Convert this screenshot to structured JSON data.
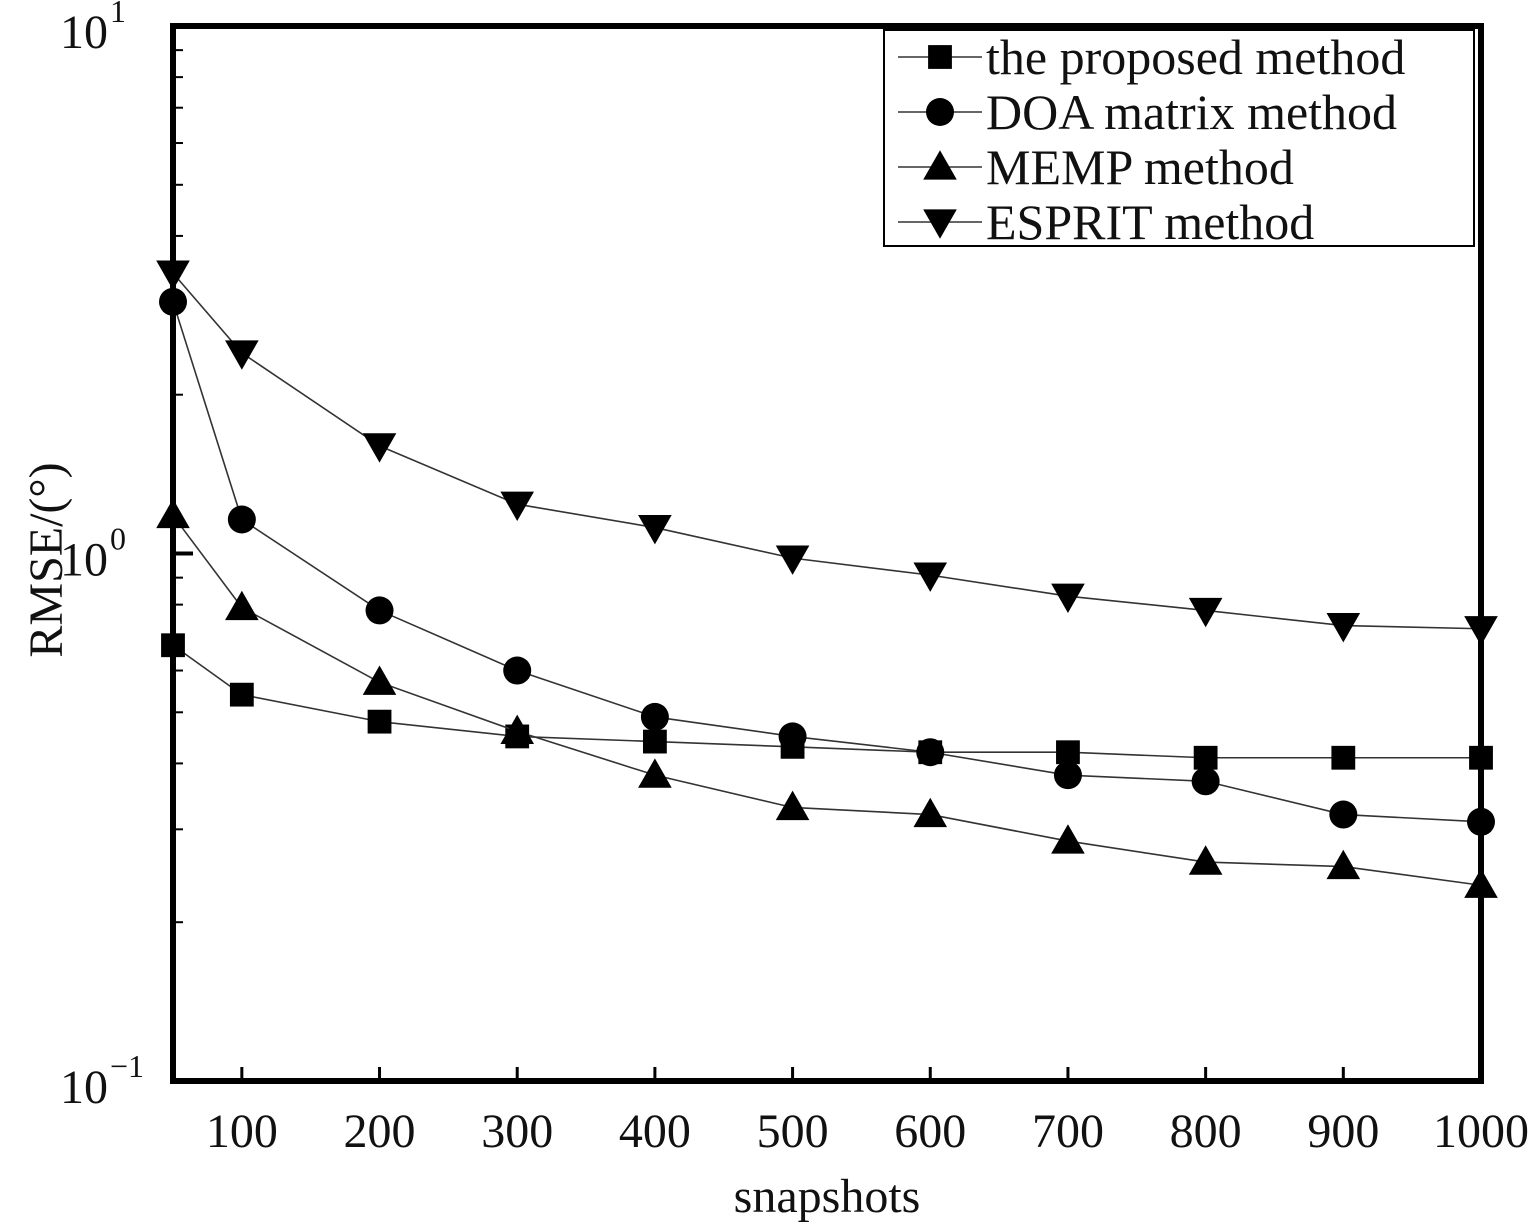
{
  "chart_data": {
    "type": "line",
    "xlabel": "snapshots",
    "ylabel": "RMSE/(°)",
    "yscale": "log",
    "xlim": [
      50,
      1000
    ],
    "ylim": [
      0.1,
      10
    ],
    "xticks": [
      100,
      200,
      300,
      400,
      500,
      600,
      700,
      800,
      900,
      1000
    ],
    "xtick_labels": [
      "100",
      "200",
      "300",
      "400",
      "500",
      "600",
      "700",
      "800",
      "900",
      "1000"
    ],
    "ytick_labels": [
      {
        "base": "10",
        "exp": "1",
        "value": 10
      },
      {
        "base": "10",
        "exp": "0",
        "value": 1
      },
      {
        "base": "10",
        "exp": "−1",
        "value": 0.1
      }
    ],
    "legend_position": "top-right",
    "grid": false,
    "x": [
      50,
      100,
      200,
      300,
      400,
      500,
      600,
      700,
      800,
      900,
      1000
    ],
    "series": [
      {
        "name": "the proposed method",
        "marker": "square",
        "values": [
          0.67,
          0.54,
          0.48,
          0.45,
          0.44,
          0.43,
          0.42,
          0.42,
          0.41,
          0.41,
          0.41
        ]
      },
      {
        "name": "DOA matrix method",
        "marker": "circle",
        "values": [
          3.0,
          1.16,
          0.78,
          0.6,
          0.49,
          0.45,
          0.42,
          0.38,
          0.37,
          0.32,
          0.31
        ]
      },
      {
        "name": "MEMP method",
        "marker": "triangle-up",
        "values": [
          1.18,
          0.79,
          0.57,
          0.46,
          0.38,
          0.33,
          0.32,
          0.285,
          0.26,
          0.255,
          0.235
        ]
      },
      {
        "name": "ESPRIT method",
        "marker": "triangle-down",
        "values": [
          3.4,
          2.4,
          1.6,
          1.24,
          1.12,
          0.98,
          0.91,
          0.83,
          0.78,
          0.73,
          0.72
        ]
      }
    ]
  }
}
